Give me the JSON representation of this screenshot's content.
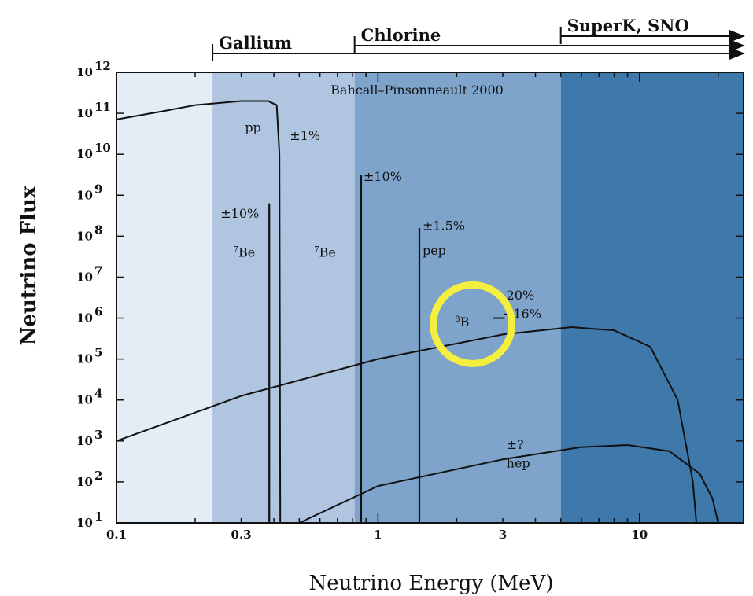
{
  "chart_data": {
    "type": "line",
    "title": "Bahcall–Pinsonneault 2000",
    "xlabel": "Neutrino Energy (MeV)",
    "ylabel": "Neutrino Flux",
    "xscale": "log",
    "yscale": "log",
    "xlim": [
      0.1,
      25
    ],
    "ylim_exponent": [
      1,
      12
    ],
    "x_tick_labels": [
      {
        "value": 0.1,
        "label": "0.1"
      },
      {
        "value": 0.3,
        "label": "0.3"
      },
      {
        "value": 1,
        "label": "1"
      },
      {
        "value": 3,
        "label": "3"
      },
      {
        "value": 10,
        "label": "10"
      }
    ],
    "y_tick_exponents": [
      1,
      2,
      3,
      4,
      5,
      6,
      7,
      8,
      9,
      10,
      11,
      12
    ],
    "y_tick_base": "10",
    "bands": [
      {
        "name": "",
        "from": 0.1,
        "to": 0.233,
        "color": "#e4ecf6"
      },
      {
        "name": "",
        "from": 0.233,
        "to": 0.814,
        "color": "#b0c6e0"
      },
      {
        "name": "",
        "from": 0.814,
        "to": 5.0,
        "color": "#7fa4cb"
      },
      {
        "name": "",
        "from": 5.0,
        "to": 25,
        "color": "#3f78ab"
      }
    ],
    "thresholds": [
      {
        "label": "Gallium",
        "x": 0.233
      },
      {
        "label": "Chlorine",
        "x": 0.814
      },
      {
        "label": "SuperK, SNO",
        "x": 5.0
      }
    ],
    "series": [
      {
        "name": "pp",
        "points": [
          [
            0.1,
            10.85
          ],
          [
            0.15,
            11.05
          ],
          [
            0.2,
            11.2
          ],
          [
            0.3,
            11.3
          ],
          [
            0.38,
            11.3
          ],
          [
            0.41,
            11.2
          ],
          [
            0.42,
            10.0
          ],
          [
            0.423,
            1
          ]
        ]
      },
      {
        "name": "8B",
        "points": [
          [
            0.1,
            3.0
          ],
          [
            0.3,
            4.1
          ],
          [
            1,
            5.0
          ],
          [
            3,
            5.6
          ],
          [
            5.5,
            5.78
          ],
          [
            8,
            5.7
          ],
          [
            11,
            5.3
          ],
          [
            14,
            4.0
          ],
          [
            16,
            2.0
          ],
          [
            16.5,
            1
          ]
        ]
      },
      {
        "name": "hep",
        "points": [
          [
            0.5,
            1
          ],
          [
            1,
            1.9
          ],
          [
            3,
            2.55
          ],
          [
            6,
            2.85
          ],
          [
            9,
            2.9
          ],
          [
            13,
            2.75
          ],
          [
            17,
            2.2
          ],
          [
            19,
            1.6
          ],
          [
            20,
            1
          ]
        ]
      }
    ],
    "lines": [
      {
        "name": "7Be",
        "x": 0.384,
        "top": 8.8
      },
      {
        "name": "7Be",
        "x": 0.862,
        "top": 9.5
      },
      {
        "name": "pep",
        "x": 1.44,
        "top": 8.2
      }
    ],
    "labels": [
      {
        "text": "pp",
        "x": 0.31,
        "y": 10.55
      },
      {
        "text": "±1%",
        "x": 0.46,
        "y": 10.35
      },
      {
        "text": "±10%",
        "x": 0.88,
        "y": 9.35
      },
      {
        "text": "±10%",
        "x": 0.25,
        "y": 8.45
      },
      {
        "text": "±1.5%",
        "x": 1.48,
        "y": 8.15
      },
      {
        "text": "7Be",
        "x": 0.28,
        "y": 7.5
      },
      {
        "text": "7Be",
        "x": 0.57,
        "y": 7.5
      },
      {
        "text": "pep",
        "x": 1.48,
        "y": 7.55
      },
      {
        "text": "20%",
        "x": 3.1,
        "y": 6.45
      },
      {
        "text": "−16%",
        "x": 3.0,
        "y": 6.0
      },
      {
        "text": "8B",
        "x": 1.97,
        "y": 5.8
      },
      {
        "text": "±?",
        "x": 3.1,
        "y": 2.8
      },
      {
        "text": "hep",
        "x": 3.1,
        "y": 2.35
      }
    ],
    "highlight": {
      "x": 2.3,
      "y": 5.85,
      "color": "#f4ee3e"
    }
  }
}
